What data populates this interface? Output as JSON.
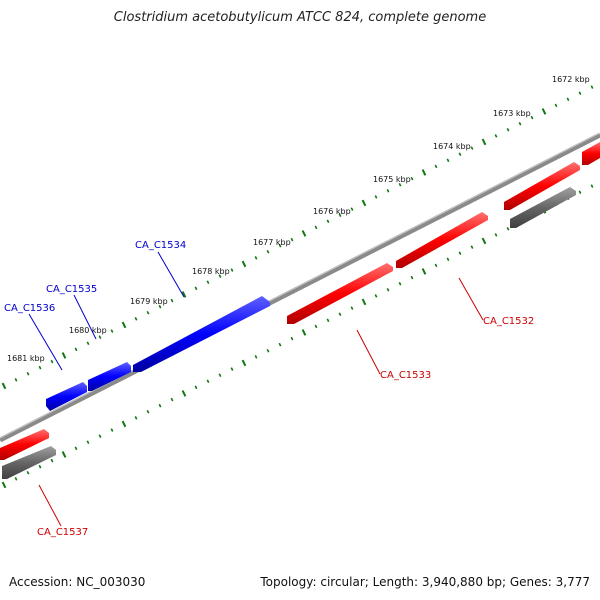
{
  "title": "Clostridium acetobutylicum ATCC 824, complete genome",
  "footer": {
    "accession": "Accession: NC_003030",
    "summary": "Topology: circular; Length: 3,940,880 bp; Genes: 3,777"
  },
  "colors": {
    "forward_gene": "#ff0000",
    "reverse_gene": "#0000ff",
    "other_feature": "#666666",
    "backbone": "#808080",
    "tick": "#117711"
  },
  "kbp_labels": [
    "1672 kbp",
    "1673 kbp",
    "1674 kbp",
    "1675 kbp",
    "1676 kbp",
    "1677 kbp",
    "1678 kbp",
    "1679 kbp",
    "1680 kbp",
    "1681 kbp"
  ],
  "genes": {
    "CA_C1532": "CA_C1532",
    "CA_C1533": "CA_C1533",
    "CA_C1534": "CA_C1534",
    "CA_C1535": "CA_C1535",
    "CA_C1536": "CA_C1536",
    "CA_C1537": "CA_C1537"
  }
}
